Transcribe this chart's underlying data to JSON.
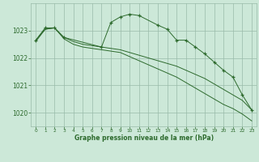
{
  "background_color": "#cce8d8",
  "grid_color": "#99bbaa",
  "line_color": "#2d6a2d",
  "title": "Graphe pression niveau de la mer (hPa)",
  "xlim": [
    -0.5,
    23.5
  ],
  "ylim": [
    1019.5,
    1024.0
  ],
  "yticks": [
    1020,
    1021,
    1022,
    1023
  ],
  "xticks": [
    0,
    1,
    2,
    3,
    4,
    5,
    6,
    7,
    8,
    9,
    10,
    11,
    12,
    13,
    14,
    15,
    16,
    17,
    18,
    19,
    20,
    21,
    22,
    23
  ],
  "series": [
    {
      "x": [
        0,
        1,
        2,
        3,
        4,
        5,
        6,
        7,
        8,
        9,
        10,
        11,
        12,
        13,
        14,
        15,
        16,
        17,
        18,
        19,
        20,
        21,
        22,
        23
      ],
      "y": [
        1022.65,
        1023.05,
        1023.1,
        1022.75,
        1022.6,
        1022.5,
        1022.45,
        1022.4,
        1022.35,
        1022.3,
        1022.2,
        1022.1,
        1022.0,
        1021.9,
        1021.8,
        1021.7,
        1021.55,
        1021.4,
        1021.25,
        1021.05,
        1020.85,
        1020.65,
        1020.45,
        1020.1
      ]
    },
    {
      "x": [
        0,
        1,
        2,
        3,
        4,
        5,
        6,
        7,
        8,
        9,
        10,
        11,
        12,
        13,
        14,
        15,
        16,
        17,
        18,
        19,
        20,
        21,
        22,
        23
      ],
      "y": [
        1022.6,
        1023.05,
        1023.1,
        1022.7,
        1022.5,
        1022.4,
        1022.35,
        1022.3,
        1022.25,
        1022.2,
        1022.05,
        1021.9,
        1021.75,
        1021.6,
        1021.45,
        1021.3,
        1021.1,
        1020.9,
        1020.7,
        1020.5,
        1020.3,
        1020.15,
        1019.95,
        1019.7
      ]
    },
    {
      "x": [
        0,
        1,
        2,
        3,
        7,
        8,
        9,
        10,
        11,
        13,
        14,
        15,
        16,
        17,
        18,
        19,
        20,
        21,
        22,
        23
      ],
      "y": [
        1022.65,
        1023.1,
        1023.1,
        1022.75,
        1022.4,
        1023.3,
        1023.5,
        1023.6,
        1023.55,
        1023.2,
        1023.05,
        1022.65,
        1022.65,
        1022.4,
        1022.15,
        1021.85,
        1021.55,
        1021.3,
        1020.65,
        1020.1
      ]
    }
  ]
}
